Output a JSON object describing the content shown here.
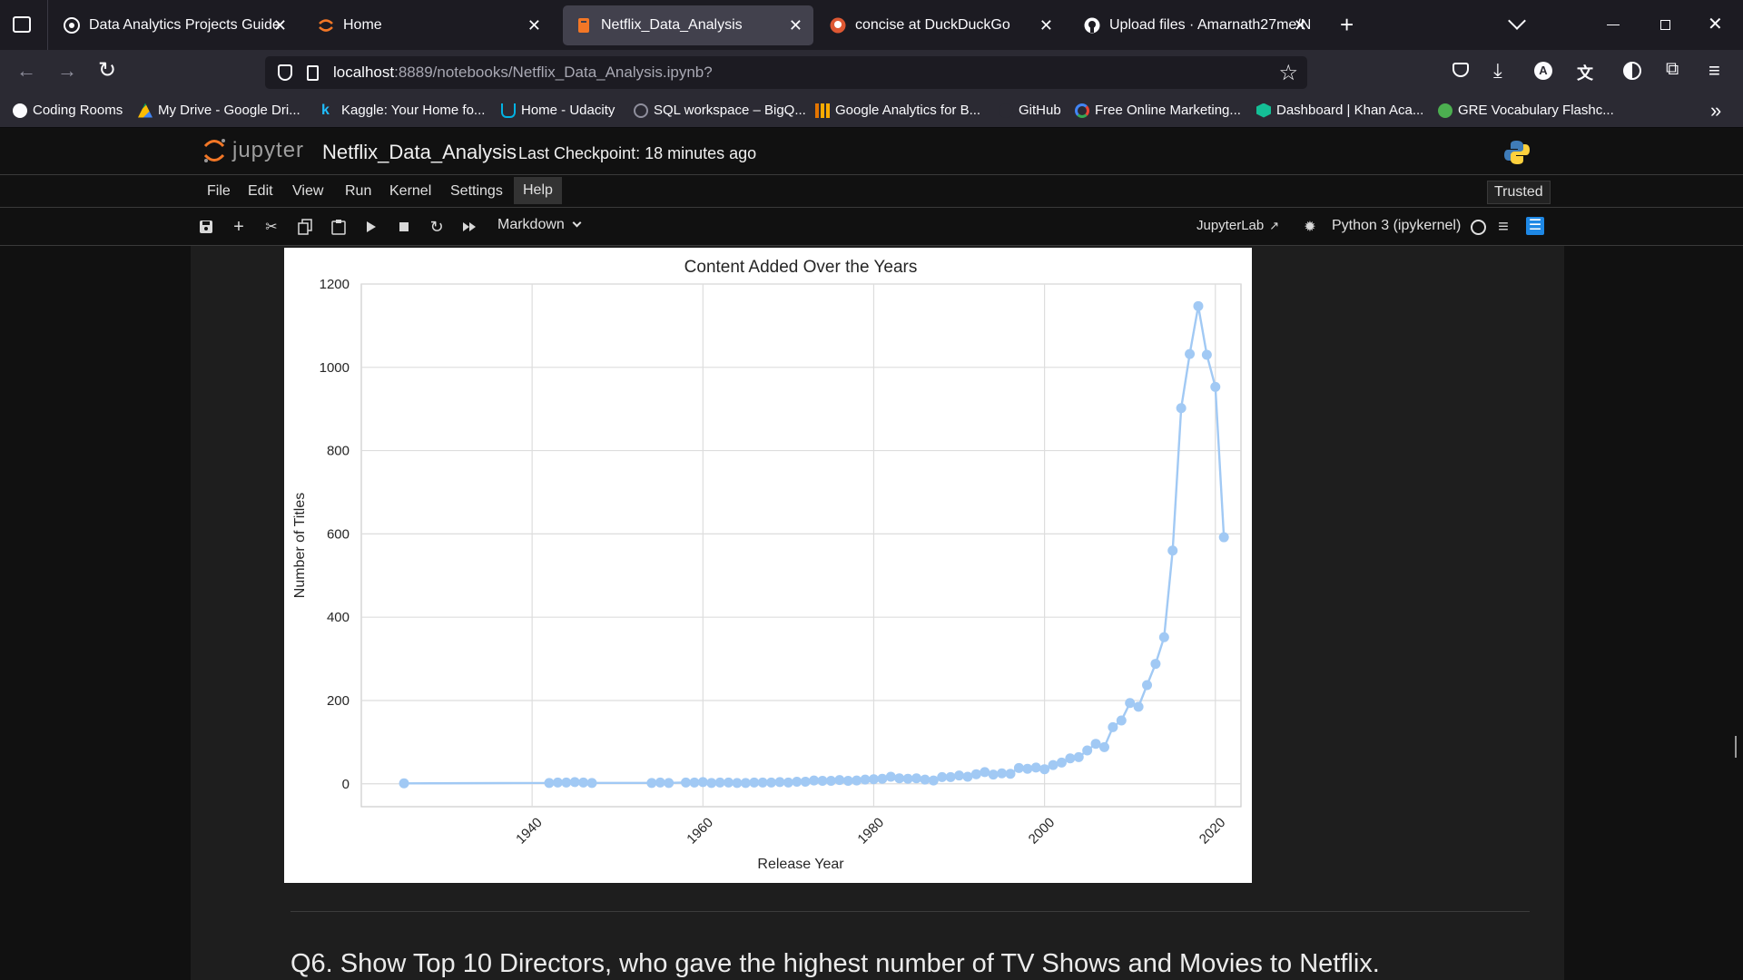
{
  "browser": {
    "tabs": [
      {
        "title": "Data Analytics Projects Guide",
        "active": false
      },
      {
        "title": "Home",
        "active": false
      },
      {
        "title": "Netflix_Data_Analysis",
        "active": true
      },
      {
        "title": "concise at DuckDuckGo",
        "active": false
      },
      {
        "title": "Upload files · Amarnath27me/N",
        "active": false
      }
    ],
    "url_host": "localhost",
    "url_rest": ":8889/notebooks/Netflix_Data_Analysis.ipynb?",
    "bookmarks": [
      "Coding Rooms",
      "My Drive - Google Dri...",
      "Kaggle: Your Home fo...",
      "Home - Udacity",
      "SQL workspace – BigQ...",
      "Google Analytics for B...",
      "GitHub",
      "Free Online Marketing...",
      "Dashboard | Khan Aca...",
      "GRE Vocabulary Flashc..."
    ]
  },
  "jupyter": {
    "logo_text": "jupyter",
    "notebook_name": "Netflix_Data_Analysis",
    "checkpoint": "Last Checkpoint: 18 minutes ago",
    "menu": [
      "File",
      "Edit",
      "View",
      "Run",
      "Kernel",
      "Settings",
      "Help"
    ],
    "trusted": "Trusted",
    "cell_type": "Markdown",
    "jupyterlab_link": "JupyterLab",
    "kernel": "Python 3 (ipykernel)"
  },
  "chart_data": {
    "type": "line",
    "title": "Content Added Over the Years",
    "xlabel": "Release Year",
    "ylabel": "Number of Titles",
    "xlim": [
      1920,
      2023
    ],
    "ylim": [
      -55,
      1200
    ],
    "xticks": [
      1940,
      1960,
      1980,
      2000,
      2020
    ],
    "yticks": [
      0,
      200,
      400,
      600,
      800,
      1000,
      1200
    ],
    "grid": true,
    "color": "#a1c9f4",
    "x": [
      1925,
      1942,
      1943,
      1944,
      1945,
      1946,
      1947,
      1954,
      1955,
      1956,
      1958,
      1959,
      1960,
      1961,
      1962,
      1963,
      1964,
      1965,
      1966,
      1967,
      1968,
      1969,
      1970,
      1971,
      1972,
      1973,
      1974,
      1975,
      1976,
      1977,
      1978,
      1979,
      1980,
      1981,
      1982,
      1983,
      1984,
      1985,
      1986,
      1987,
      1988,
      1989,
      1990,
      1991,
      1992,
      1993,
      1994,
      1995,
      1996,
      1997,
      1998,
      1999,
      2000,
      2001,
      2002,
      2003,
      2004,
      2005,
      2006,
      2007,
      2008,
      2009,
      2010,
      2011,
      2012,
      2013,
      2014,
      2015,
      2016,
      2017,
      2018,
      2019,
      2020,
      2021
    ],
    "values": [
      1,
      2,
      3,
      3,
      4,
      3,
      2,
      2,
      3,
      2,
      3,
      3,
      4,
      2,
      3,
      3,
      2,
      2,
      3,
      3,
      3,
      4,
      3,
      5,
      5,
      8,
      7,
      7,
      9,
      7,
      8,
      10,
      11,
      12,
      17,
      13,
      12,
      13,
      10,
      8,
      16,
      16,
      20,
      17,
      23,
      28,
      22,
      25,
      24,
      38,
      36,
      39,
      35,
      45,
      51,
      61,
      64,
      80,
      96,
      88,
      136,
      152,
      194,
      185,
      237,
      288,
      352,
      560,
      902,
      1032,
      1147,
      1030,
      953,
      592
    ]
  },
  "next_cell": {
    "text": "Q6. Show Top 10 Directors, who gave the highest number of TV Shows and Movies to Netflix."
  }
}
